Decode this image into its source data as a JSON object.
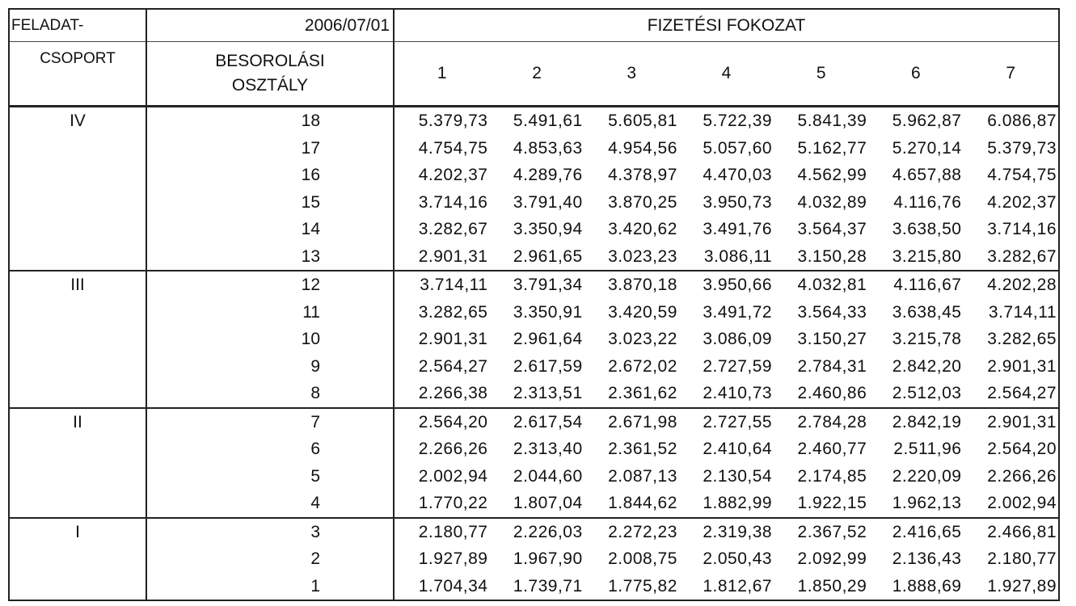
{
  "header": {
    "group_label_top": "FELADAT-",
    "group_label_bottom": "CSOPORT",
    "date": "2006/07/01",
    "class_label_line1": "BESOROLÁSI",
    "class_label_line2": "OSZTÁLY",
    "grade_title": "FIZETÉSI FOKOZAT",
    "grades": [
      "1",
      "2",
      "3",
      "4",
      "5",
      "6",
      "7"
    ]
  },
  "rows": [
    {
      "group": "IV",
      "class": "18",
      "values": [
        "5.379,73",
        "5.491,61",
        "5.605,81",
        "5.722,39",
        "5.841,39",
        "5.962,87",
        "6.086,87"
      ]
    },
    {
      "group": "",
      "class": "17",
      "values": [
        "4.754,75",
        "4.853,63",
        "4.954,56",
        "5.057,60",
        "5.162,77",
        "5.270,14",
        "5.379,73"
      ]
    },
    {
      "group": "",
      "class": "16",
      "values": [
        "4.202,37",
        "4.289,76",
        "4.378,97",
        "4.470,03",
        "4.562,99",
        "4.657,88",
        "4.754,75"
      ]
    },
    {
      "group": "",
      "class": "15",
      "values": [
        "3.714,16",
        "3.791,40",
        "3.870,25",
        "3.950,73",
        "4.032,89",
        "4.116,76",
        "4.202,37"
      ]
    },
    {
      "group": "",
      "class": "14",
      "values": [
        "3.282,67",
        "3.350,94",
        "3.420,62",
        "3.491,76",
        "3.564,37",
        "3.638,50",
        "3.714,16"
      ]
    },
    {
      "group": "",
      "class": "13",
      "values": [
        "2.901,31",
        "2.961,65",
        "3.023,23",
        "3.086,11",
        "3.150,28",
        "3.215,80",
        "3.282,67"
      ]
    },
    {
      "group": "III",
      "class": "12",
      "values": [
        "3.714,11",
        "3.791,34",
        "3.870,18",
        "3.950,66",
        "4.032,81",
        "4.116,67",
        "4.202,28"
      ]
    },
    {
      "group": "",
      "class": "11",
      "values": [
        "3.282,65",
        "3.350,91",
        "3.420,59",
        "3.491,72",
        "3.564,33",
        "3.638,45",
        "3.714,11"
      ]
    },
    {
      "group": "",
      "class": "10",
      "values": [
        "2.901,31",
        "2.961,64",
        "3.023,22",
        "3.086,09",
        "3.150,27",
        "3.215,78",
        "3.282,65"
      ]
    },
    {
      "group": "",
      "class": "9",
      "values": [
        "2.564,27",
        "2.617,59",
        "2.672,02",
        "2.727,59",
        "2.784,31",
        "2.842,20",
        "2.901,31"
      ]
    },
    {
      "group": "",
      "class": "8",
      "values": [
        "2.266,38",
        "2.313,51",
        "2.361,62",
        "2.410,73",
        "2.460,86",
        "2.512,03",
        "2.564,27"
      ]
    },
    {
      "group": "II",
      "class": "7",
      "values": [
        "2.564,20",
        "2.617,54",
        "2.671,98",
        "2.727,55",
        "2.784,28",
        "2.842,19",
        "2.901,31"
      ]
    },
    {
      "group": "",
      "class": "6",
      "values": [
        "2.266,26",
        "2.313,40",
        "2.361,52",
        "2.410,64",
        "2.460,77",
        "2.511,96",
        "2.564,20"
      ]
    },
    {
      "group": "",
      "class": "5",
      "values": [
        "2.002,94",
        "2.044,60",
        "2.087,13",
        "2.130,54",
        "2.174,85",
        "2.220,09",
        "2.266,26"
      ]
    },
    {
      "group": "",
      "class": "4",
      "values": [
        "1.770,22",
        "1.807,04",
        "1.844,62",
        "1.882,99",
        "1.922,15",
        "1.962,13",
        "2.002,94"
      ]
    },
    {
      "group": "I",
      "class": "3",
      "values": [
        "2.180,77",
        "2.226,03",
        "2.272,23",
        "2.319,38",
        "2.367,52",
        "2.416,65",
        "2.466,81"
      ]
    },
    {
      "group": "",
      "class": "2",
      "values": [
        "1.927,89",
        "1.967,90",
        "2.008,75",
        "2.050,43",
        "2.092,99",
        "2.136,43",
        "2.180,77"
      ]
    },
    {
      "group": "",
      "class": "1",
      "values": [
        "1.704,34",
        "1.739,71",
        "1.775,82",
        "1.812,67",
        "1.850,29",
        "1.888,69",
        "1.927,89"
      ]
    }
  ]
}
